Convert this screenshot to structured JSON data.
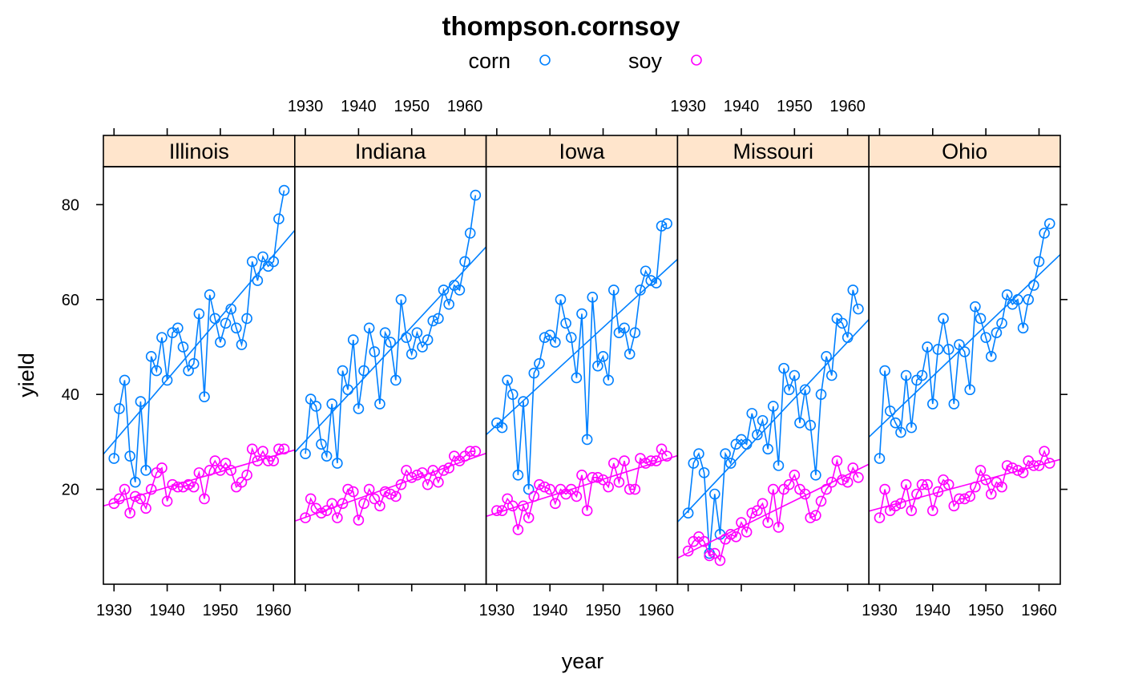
{
  "chart_data": {
    "type": "line",
    "title": "thompson.cornsoy",
    "xlabel": "year",
    "ylabel": "yield",
    "xlim": [
      1928,
      1964
    ],
    "ylim": [
      0,
      88
    ],
    "x_ticks": [
      1930,
      1940,
      1950,
      1960
    ],
    "y_ticks": [
      20,
      40,
      60,
      80
    ],
    "grid": false,
    "legend_position": "top",
    "legend": [
      {
        "name": "corn",
        "color": "#0080ff"
      },
      {
        "name": "soy",
        "color": "#ff00ff"
      }
    ],
    "strip_color": "#ffe5cc",
    "panels": [
      {
        "name": "Illinois",
        "series": [
          {
            "name": "corn",
            "x": [
              1930,
              1931,
              1932,
              1933,
              1934,
              1935,
              1936,
              1937,
              1938,
              1939,
              1940,
              1941,
              1942,
              1943,
              1944,
              1945,
              1946,
              1947,
              1948,
              1949,
              1950,
              1951,
              1952,
              1953,
              1954,
              1955,
              1956,
              1957,
              1958,
              1959,
              1960,
              1961,
              1962
            ],
            "y": [
              26.5,
              37,
              43,
              27,
              21.5,
              38.5,
              24,
              48,
              45,
              52,
              43,
              53,
              54,
              50,
              45,
              46.5,
              57,
              39.5,
              61,
              56,
              51,
              55,
              58,
              54,
              50.5,
              56,
              68,
              64,
              69,
              67,
              68,
              77,
              83
            ],
            "fit": [
              27.4,
              74.6
            ]
          },
          {
            "name": "soy",
            "x": [
              1930,
              1931,
              1932,
              1933,
              1934,
              1935,
              1936,
              1937,
              1938,
              1939,
              1940,
              1941,
              1942,
              1943,
              1944,
              1945,
              1946,
              1947,
              1948,
              1949,
              1950,
              1951,
              1952,
              1953,
              1954,
              1955,
              1956,
              1957,
              1958,
              1959,
              1960,
              1961,
              1962
            ],
            "y": [
              17,
              18,
              20,
              15,
              18.5,
              18,
              16,
              20,
              23.5,
              24.5,
              17.5,
              21,
              20.5,
              20.5,
              21,
              20.5,
              23.5,
              18,
              24,
              26,
              24,
              25.5,
              24,
              20.5,
              21.5,
              23,
              28.5,
              26,
              28,
              26,
              26,
              28.5,
              28.5
            ],
            "fit": [
              16.5,
              28.3
            ]
          }
        ]
      },
      {
        "name": "Indiana",
        "series": [
          {
            "name": "corn",
            "x": [
              1930,
              1931,
              1932,
              1933,
              1934,
              1935,
              1936,
              1937,
              1938,
              1939,
              1940,
              1941,
              1942,
              1943,
              1944,
              1945,
              1946,
              1947,
              1948,
              1949,
              1950,
              1951,
              1952,
              1953,
              1954,
              1955,
              1956,
              1957,
              1958,
              1959,
              1960,
              1961,
              1962
            ],
            "y": [
              27.5,
              39,
              37.5,
              29.5,
              27,
              38,
              25.5,
              45,
              41,
              51.5,
              37,
              45,
              54,
              49,
              38,
              53,
              51,
              43,
              60,
              52,
              48.5,
              53,
              50,
              51.5,
              55.5,
              56,
              62,
              59,
              63,
              62,
              68,
              74,
              82
            ],
            "fit": [
              27.8,
              71.1
            ]
          },
          {
            "name": "soy",
            "x": [
              1930,
              1931,
              1932,
              1933,
              1934,
              1935,
              1936,
              1937,
              1938,
              1939,
              1940,
              1941,
              1942,
              1943,
              1944,
              1945,
              1946,
              1947,
              1948,
              1949,
              1950,
              1951,
              1952,
              1953,
              1954,
              1955,
              1956,
              1957,
              1958,
              1959,
              1960,
              1961,
              1962
            ],
            "y": [
              14,
              18,
              16,
              15,
              15.5,
              17,
              14,
              17,
              20,
              19.5,
              13.5,
              17,
              20,
              18,
              16.5,
              19.5,
              19,
              18.5,
              21,
              24,
              22.5,
              23,
              23.5,
              21,
              24,
              21.5,
              24,
              24.5,
              27,
              26,
              27,
              28,
              28
            ],
            "fit": [
              13.3,
              27.6
            ]
          }
        ]
      },
      {
        "name": "Iowa",
        "series": [
          {
            "name": "corn",
            "x": [
              1930,
              1931,
              1932,
              1933,
              1934,
              1935,
              1936,
              1937,
              1938,
              1939,
              1940,
              1941,
              1942,
              1943,
              1944,
              1945,
              1946,
              1947,
              1948,
              1949,
              1950,
              1951,
              1952,
              1953,
              1954,
              1955,
              1956,
              1957,
              1958,
              1959,
              1960,
              1961,
              1962
            ],
            "y": [
              34,
              33,
              43,
              40,
              23,
              38.5,
              20,
              44.5,
              46.5,
              52,
              52.5,
              51,
              60,
              55,
              52,
              43.5,
              57,
              30.5,
              60.5,
              46,
              48,
              43,
              62,
              53,
              54,
              48.5,
              53,
              62,
              66,
              64,
              63.5,
              75.5,
              76
            ],
            "fit": [
              31.5,
              68.5
            ]
          },
          {
            "name": "soy",
            "x": [
              1930,
              1931,
              1932,
              1933,
              1934,
              1935,
              1936,
              1937,
              1938,
              1939,
              1940,
              1941,
              1942,
              1943,
              1944,
              1945,
              1946,
              1947,
              1948,
              1949,
              1950,
              1951,
              1952,
              1953,
              1954,
              1955,
              1956,
              1957,
              1958,
              1959,
              1960,
              1961,
              1962
            ],
            "y": [
              15.5,
              15.5,
              18,
              16.5,
              11.5,
              16.5,
              14,
              18.5,
              21,
              20.5,
              20,
              17,
              20,
              19,
              20,
              18.5,
              23,
              15.5,
              22.5,
              22.5,
              22,
              20.5,
              25.5,
              21.5,
              26,
              20,
              20,
              26.5,
              25.5,
              26,
              26,
              28.5,
              27
            ],
            "fit": [
              14.3,
              27.1
            ]
          }
        ]
      },
      {
        "name": "Missouri",
        "series": [
          {
            "name": "corn",
            "x": [
              1930,
              1931,
              1932,
              1933,
              1934,
              1935,
              1936,
              1937,
              1938,
              1939,
              1940,
              1941,
              1942,
              1943,
              1944,
              1945,
              1946,
              1947,
              1948,
              1949,
              1950,
              1951,
              1952,
              1953,
              1954,
              1955,
              1956,
              1957,
              1958,
              1959,
              1960,
              1961,
              1962
            ],
            "y": [
              15,
              25.5,
              27.5,
              23.5,
              6.5,
              19,
              10.5,
              27.5,
              25.5,
              29.5,
              30.5,
              29.5,
              36,
              31.5,
              34.5,
              28.5,
              37.5,
              25,
              45.5,
              41,
              44,
              34,
              41,
              33.5,
              23,
              40,
              48,
              44,
              56,
              55,
              52,
              62,
              58
            ],
            "fit": [
              13.1,
              55.8
            ]
          },
          {
            "name": "soy",
            "x": [
              1930,
              1931,
              1932,
              1933,
              1934,
              1935,
              1936,
              1937,
              1938,
              1939,
              1940,
              1941,
              1942,
              1943,
              1944,
              1945,
              1946,
              1947,
              1948,
              1949,
              1950,
              1951,
              1952,
              1953,
              1954,
              1955,
              1956,
              1957,
              1958,
              1959,
              1960,
              1961,
              1962
            ],
            "y": [
              7,
              9,
              10,
              9,
              6,
              6.5,
              5,
              9.5,
              10.5,
              10,
              13,
              11,
              15,
              15.5,
              17,
              13,
              20,
              12,
              20,
              21,
              23,
              20,
              19,
              14,
              14.5,
              17.5,
              20,
              21.5,
              26,
              22,
              21.5,
              24.5,
              22.5
            ],
            "fit": [
              5.5,
              25.3
            ]
          }
        ]
      },
      {
        "name": "Ohio",
        "series": [
          {
            "name": "corn",
            "x": [
              1930,
              1931,
              1932,
              1933,
              1934,
              1935,
              1936,
              1937,
              1938,
              1939,
              1940,
              1941,
              1942,
              1943,
              1944,
              1945,
              1946,
              1947,
              1948,
              1949,
              1950,
              1951,
              1952,
              1953,
              1954,
              1955,
              1956,
              1957,
              1958,
              1959,
              1960,
              1961,
              1962
            ],
            "y": [
              26.5,
              45,
              36.5,
              34,
              32,
              44,
              33,
              43,
              44,
              50,
              38,
              49.5,
              56,
              49.5,
              38,
              50.5,
              49,
              41,
              58.5,
              56,
              52,
              48,
              53,
              55,
              61,
              59,
              60,
              54,
              60,
              63,
              68,
              74,
              76
            ],
            "fit": [
              31.0,
              69.5
            ]
          },
          {
            "name": "soy",
            "x": [
              1930,
              1931,
              1932,
              1933,
              1934,
              1935,
              1936,
              1937,
              1938,
              1939,
              1940,
              1941,
              1942,
              1943,
              1944,
              1945,
              1946,
              1947,
              1948,
              1949,
              1950,
              1951,
              1952,
              1953,
              1954,
              1955,
              1956,
              1957,
              1958,
              1959,
              1960,
              1961,
              1962
            ],
            "y": [
              14,
              20,
              15.5,
              16.5,
              17,
              21,
              15.5,
              19,
              21,
              21,
              15.5,
              19.5,
              22,
              21,
              16.5,
              18,
              18,
              18.5,
              20.5,
              24,
              22,
              19,
              21.5,
              20.5,
              25,
              24.5,
              24,
              23.5,
              26,
              25,
              25,
              28,
              25.5
            ],
            "fit": [
              15.4,
              26.3
            ]
          }
        ]
      }
    ]
  }
}
